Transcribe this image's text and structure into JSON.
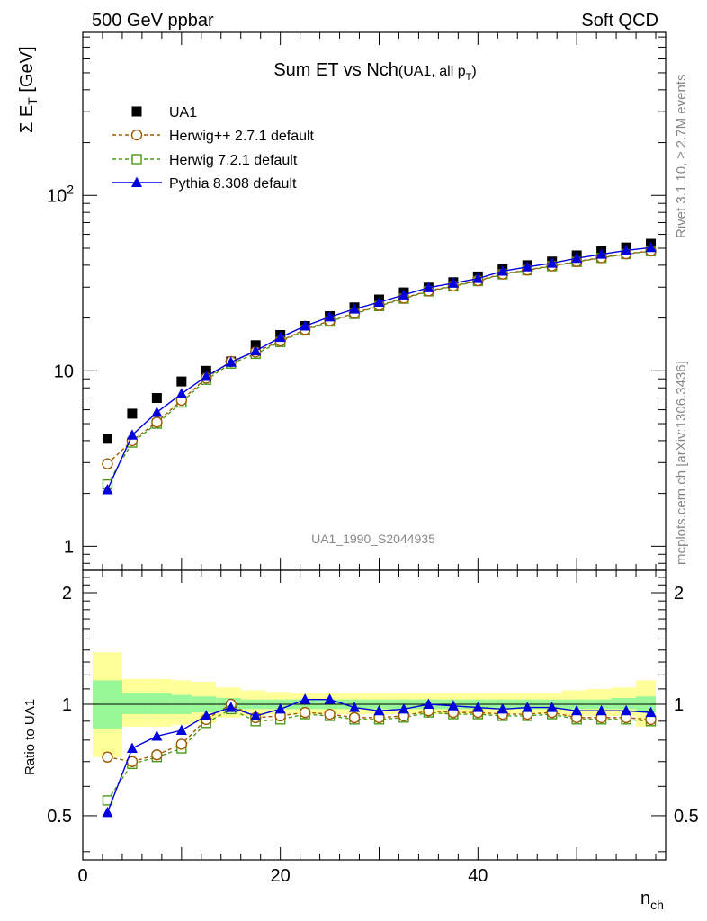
{
  "header": {
    "left": "500 GeV ppbar",
    "right": "Soft QCD",
    "watermark": "UA1_1990_S2044935",
    "side_top": "Rivet 3.1.10, ≥ 2.7M events",
    "side_bottom": "mcplots.cern.ch [arXiv:1306.3436]"
  },
  "chart_data": {
    "type": "scatter",
    "title": {
      "main": "Sum ET vs Nch",
      "paren_open": "(UA1, all p",
      "sub": "T",
      "paren_close": ")"
    },
    "ylabel": {
      "sym": "Σ E",
      "sub": "T",
      "unit": " [GeV]"
    },
    "ratio_ylabel": "Ratio to UA1",
    "xlabel": {
      "main": "n",
      "sub": "ch"
    },
    "xlim": [
      0,
      59
    ],
    "ylim": [
      0.73,
      850
    ],
    "yscale": "log",
    "ratio_ylim": [
      0.38,
      2.3
    ],
    "ratio_yscale": "log",
    "x_ticks": [
      "0",
      "20",
      "40"
    ],
    "y_ticks": [
      {
        "value": 1,
        "label": "1"
      },
      {
        "value": 10,
        "label": "10"
      },
      {
        "value": 100,
        "base": "10",
        "exp": "2"
      }
    ],
    "ratio_ticks": [
      {
        "value": 0.5,
        "label": "0.5"
      },
      {
        "value": 1,
        "label": "1"
      },
      {
        "value": 2,
        "label": "2"
      }
    ],
    "legend_position": "top-left",
    "x": [
      2.5,
      5,
      7.5,
      10,
      12.5,
      15,
      17.5,
      20,
      22.5,
      25,
      27.5,
      30,
      32.5,
      35,
      37.5,
      40,
      42.5,
      45,
      47.5,
      50,
      52.5,
      55,
      57.5
    ],
    "series": [
      {
        "name": "UA1",
        "color": "#000000",
        "marker": "filled-square",
        "line": "none",
        "values": [
          4.1,
          5.7,
          7.0,
          8.7,
          10.0,
          11.3,
          14.0,
          16.0,
          18.0,
          20.5,
          23.0,
          25.5,
          28.0,
          29.8,
          32.0,
          34.5,
          38.0,
          40.0,
          42.0,
          45.5,
          48.0,
          50.5,
          53.0
        ],
        "ratio": [
          1,
          1,
          1,
          1,
          1,
          1,
          1,
          1,
          1,
          1,
          1,
          1,
          1,
          1,
          1,
          1,
          1,
          1,
          1,
          1,
          1,
          1,
          1
        ]
      },
      {
        "name": "Herwig++ 2.7.1 default",
        "color": "#a05a00",
        "marker": "open-circle",
        "line": "dashed",
        "values": [
          2.95,
          4.0,
          5.1,
          6.8,
          9.1,
          11.3,
          12.8,
          14.8,
          17.2,
          19.3,
          21.3,
          23.6,
          26.0,
          28.6,
          30.5,
          32.7,
          35.7,
          37.6,
          39.7,
          42.0,
          44.2,
          46.5,
          48.3
        ],
        "ratio": [
          0.72,
          0.7,
          0.73,
          0.78,
          0.91,
          1.0,
          0.92,
          0.93,
          0.95,
          0.94,
          0.92,
          0.92,
          0.93,
          0.96,
          0.95,
          0.95,
          0.94,
          0.94,
          0.95,
          0.92,
          0.92,
          0.92,
          0.91
        ]
      },
      {
        "name": "Herwig 7.2.1 default",
        "color": "#4a9a1a",
        "marker": "open-square",
        "line": "dashed",
        "values": [
          2.25,
          3.9,
          5.0,
          6.6,
          8.9,
          11.0,
          12.5,
          14.6,
          17.0,
          19.1,
          21.1,
          23.4,
          25.8,
          28.4,
          30.3,
          32.5,
          35.5,
          37.4,
          39.5,
          41.8,
          44.0,
          46.3,
          48.1
        ],
        "ratio": [
          0.55,
          0.69,
          0.72,
          0.76,
          0.89,
          0.97,
          0.9,
          0.91,
          0.94,
          0.93,
          0.91,
          0.91,
          0.92,
          0.95,
          0.94,
          0.94,
          0.93,
          0.93,
          0.94,
          0.91,
          0.91,
          0.91,
          0.9
        ]
      },
      {
        "name": "Pythia 8.308 default",
        "color": "#0000dd",
        "marker": "filled-triangle",
        "line": "solid",
        "values": [
          2.1,
          4.3,
          5.8,
          7.4,
          9.3,
          11.2,
          13.0,
          15.5,
          18.0,
          20.3,
          22.5,
          24.6,
          27.1,
          29.8,
          31.6,
          33.6,
          37.0,
          39.1,
          41.1,
          43.8,
          46.2,
          48.6,
          50.4
        ],
        "ratio": [
          0.51,
          0.76,
          0.82,
          0.85,
          0.93,
          0.98,
          0.93,
          0.97,
          1.03,
          1.03,
          0.98,
          0.96,
          0.97,
          1.0,
          0.99,
          0.98,
          0.97,
          0.98,
          0.98,
          0.96,
          0.96,
          0.96,
          0.95
        ]
      }
    ],
    "uncertainty_bands": {
      "bin_edges": [
        1.0,
        4.0,
        6.5,
        9.0,
        11.0,
        13.5,
        16.0,
        18.5,
        21.0,
        23.5,
        26.0,
        28.5,
        31.0,
        33.5,
        36.0,
        38.5,
        41.0,
        43.5,
        46.0,
        48.5,
        51.0,
        53.5,
        56.0,
        58.0
      ],
      "stat_low": [
        0.86,
        0.94,
        0.94,
        0.94,
        0.95,
        0.96,
        0.97,
        0.97,
        0.97,
        0.97,
        0.97,
        0.97,
        0.97,
        0.97,
        0.97,
        0.97,
        0.97,
        0.97,
        0.97,
        0.97,
        0.97,
        0.97,
        0.95
      ],
      "stat_high": [
        1.16,
        1.07,
        1.07,
        1.06,
        1.05,
        1.04,
        1.03,
        1.03,
        1.03,
        1.03,
        1.03,
        1.03,
        1.03,
        1.03,
        1.03,
        1.03,
        1.03,
        1.03,
        1.03,
        1.03,
        1.03,
        1.04,
        1.05
      ],
      "total_low": [
        0.72,
        0.87,
        0.87,
        0.88,
        0.89,
        0.92,
        0.93,
        0.94,
        0.94,
        0.94,
        0.94,
        0.94,
        0.94,
        0.94,
        0.94,
        0.94,
        0.94,
        0.94,
        0.94,
        0.93,
        0.93,
        0.93,
        0.87
      ],
      "total_high": [
        1.38,
        1.17,
        1.17,
        1.16,
        1.15,
        1.11,
        1.09,
        1.08,
        1.07,
        1.07,
        1.07,
        1.07,
        1.07,
        1.07,
        1.07,
        1.07,
        1.07,
        1.07,
        1.07,
        1.09,
        1.1,
        1.11,
        1.16
      ],
      "stat_color": "#98f898",
      "total_color": "#ffff99"
    }
  }
}
